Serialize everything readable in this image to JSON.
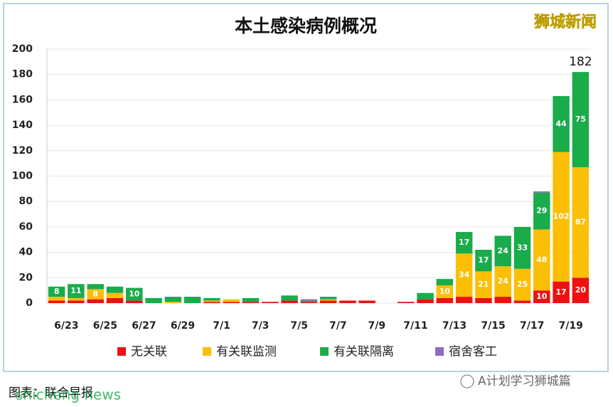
{
  "chart_data": {
    "type": "bar",
    "stacked": true,
    "title": "本土感染病例概况",
    "categories": [
      "6/23",
      null,
      "6/25",
      null,
      "6/27",
      null,
      "6/29",
      null,
      "7/1",
      null,
      "7/3",
      null,
      "7/5",
      null,
      "7/7",
      null,
      "7/9",
      null,
      "7/11",
      null,
      "7/13",
      null,
      "7/15",
      null,
      "7/17",
      null,
      "7/19",
      null
    ],
    "series": [
      {
        "name": "无关联",
        "color": "#ee1111",
        "values": [
          2,
          2,
          3,
          4,
          2,
          0,
          0,
          0,
          1,
          1,
          1,
          1,
          2,
          1,
          2,
          2,
          2,
          0,
          1,
          3,
          4,
          5,
          4,
          5,
          2,
          10,
          17,
          20
        ]
      },
      {
        "name": "有关联监测",
        "color": "#fbbf07",
        "values": [
          3,
          2,
          8,
          4,
          0,
          0,
          1,
          0,
          1,
          2,
          0,
          0,
          0,
          0,
          1,
          0,
          0,
          0,
          0,
          0,
          10,
          34,
          21,
          24,
          25,
          48,
          102,
          87
        ]
      },
      {
        "name": "有关联隔离",
        "color": "#1aab4b",
        "values": [
          8,
          11,
          4,
          5,
          10,
          4,
          4,
          5,
          2,
          0,
          3,
          0,
          4,
          1,
          2,
          0,
          0,
          0,
          0,
          5,
          5,
          17,
          17,
          24,
          33,
          29,
          44,
          75
        ]
      },
      {
        "name": "宿舍客工",
        "color": "#8e6bbf",
        "values": [
          0,
          0,
          0,
          0,
          0,
          0,
          0,
          0,
          0,
          0,
          0,
          0,
          0,
          1,
          0,
          0,
          0,
          0,
          0,
          0,
          0,
          0,
          0,
          0,
          0,
          1,
          0,
          0
        ]
      }
    ],
    "ylim": [
      0,
      200
    ],
    "yticks": [
      0,
      20,
      40,
      60,
      80,
      100,
      120,
      140,
      160,
      180,
      200
    ],
    "grid": true,
    "total_annotation": 182,
    "watermark": "狮城新闻",
    "caption": "图表：联合早报",
    "caption_overlay": "shicheng news",
    "badge": "A计划学习狮城篇"
  }
}
